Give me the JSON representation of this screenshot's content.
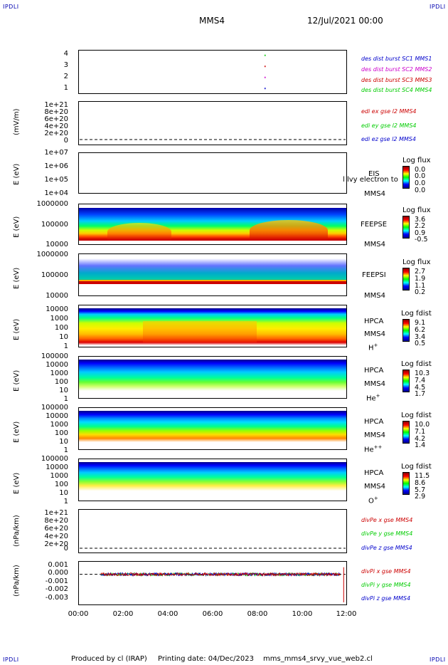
{
  "corners": {
    "tl": "IPDLI",
    "tr": "IPDLI",
    "bl": "IPDLI",
    "br": "IPDLI"
  },
  "header": {
    "mission": "MMS4",
    "date": "12/Jul/2021 00:00"
  },
  "colors": {
    "blue": "#0000cc",
    "magenta": "#cc00cc",
    "red": "#cc0000",
    "green": "#00cc00"
  },
  "chart_data": [
    {
      "type": "scatter",
      "ylim": [
        0.5,
        4.5
      ],
      "ticks": [
        "4",
        "3",
        "2",
        "1"
      ],
      "legend": [
        {
          "label": "des dist burst SC1 MMS1",
          "color": "#0000cc"
        },
        {
          "label": "des dist burst SC2 MMS2",
          "color": "#cc00cc"
        },
        {
          "label": "des dist burst SC3 MMS3",
          "color": "#cc0000"
        },
        {
          "label": "des dist burst SC4 MMS4",
          "color": "#00cc00"
        }
      ],
      "points": [
        {
          "x": "08:20",
          "y": 4
        },
        {
          "x": "08:20",
          "y": 3
        },
        {
          "x": "08:20",
          "y": 2
        },
        {
          "x": "08:20",
          "y": 1
        }
      ]
    },
    {
      "type": "line",
      "ylabel": "(mV/m)",
      "ticks": [
        "1e+21",
        "8e+20",
        "6e+20",
        "4e+20",
        "2e+20",
        "0"
      ],
      "series": [
        {
          "name": "edi ex gse l2 MMS4",
          "color": "#cc0000"
        },
        {
          "name": "edi ey gse l2 MMS4",
          "color": "#00cc00"
        },
        {
          "name": "edi ez gse l2 MMS4",
          "color": "#0000cc"
        }
      ]
    },
    {
      "type": "heatmap",
      "ylabel": "E (eV)",
      "ticks": [
        "1e+07",
        "1e+06",
        "1e+05",
        "1e+04"
      ],
      "labels": [
        "EIS",
        "MMS4"
      ],
      "overlay": "l lvy electron to",
      "cbar": {
        "title": "Log flux",
        "values": [
          "0.0",
          "0.0",
          "0.0",
          "0.0"
        ]
      }
    },
    {
      "type": "heatmap",
      "ylabel": "E (eV)",
      "ticks": [
        "1000000",
        "100000",
        "10000"
      ],
      "labels": [
        "FEEPSE",
        "MMS4"
      ],
      "cbar": {
        "title": "Log flux",
        "values": [
          "3.6",
          "2.2",
          "0.9",
          "-0.5"
        ]
      }
    },
    {
      "type": "heatmap",
      "ylabel": "E (eV)",
      "ticks": [
        "1000000",
        "100000",
        "10000"
      ],
      "labels": [
        "FEEPSI",
        "MMS4"
      ],
      "cbar": {
        "title": "Log flux",
        "values": [
          "2.7",
          "1.9",
          "1.1",
          "0.2"
        ]
      }
    },
    {
      "type": "heatmap",
      "ylabel": "E (eV)",
      "ticks": [
        "10000",
        "1000",
        "100",
        "10",
        "1"
      ],
      "labels": [
        "HPCA",
        "MMS4"
      ],
      "species": "H",
      "charge": "+",
      "cbar": {
        "title": "Log fdist",
        "values": [
          "9.1",
          "6.2",
          "3.4",
          "0.5"
        ]
      }
    },
    {
      "type": "heatmap",
      "ylabel": "E (eV)",
      "ticks": [
        "100000",
        "10000",
        "1000",
        "100",
        "10",
        "1"
      ],
      "labels": [
        "HPCA",
        "MMS4"
      ],
      "species": "He",
      "charge": "+",
      "cbar": {
        "title": "Log fdist",
        "values": [
          "10.3",
          "7.4",
          "4.5",
          "1.7"
        ]
      }
    },
    {
      "type": "heatmap",
      "ylabel": "E (eV)",
      "ticks": [
        "100000",
        "10000",
        "1000",
        "100",
        "10",
        "1"
      ],
      "labels": [
        "HPCA",
        "MMS4"
      ],
      "species": "He",
      "charge": "++",
      "cbar": {
        "title": "Log fdist",
        "values": [
          "10.0",
          "7.1",
          "4.2",
          "1.4"
        ]
      }
    },
    {
      "type": "heatmap",
      "ylabel": "E (eV)",
      "ticks": [
        "100000",
        "10000",
        "1000",
        "100",
        "10",
        "1"
      ],
      "labels": [
        "HPCA",
        "MMS4"
      ],
      "species": "O",
      "charge": "+",
      "cbar": {
        "title": "Log fdist",
        "values": [
          "11.5",
          "8.6",
          "5.7",
          "2.9"
        ]
      }
    },
    {
      "type": "line",
      "ylabel": "(nPa/km)",
      "ticks": [
        "1e+21",
        "8e+20",
        "6e+20",
        "4e+20",
        "2e+20",
        "0"
      ],
      "series": [
        {
          "name": "divPe x gse MMS4",
          "color": "#cc0000"
        },
        {
          "name": "divPe y gse MMS4",
          "color": "#00cc00"
        },
        {
          "name": "divPe z gse MMS4",
          "color": "#0000cc"
        }
      ]
    },
    {
      "type": "line",
      "ylabel": "(nPa/km)",
      "ticks": [
        "0.001",
        "0.000",
        "-0.001",
        "-0.002",
        "-0.003"
      ],
      "ylim": [
        -0.0035,
        0.0015
      ],
      "series": [
        {
          "name": "divPi x gse MMS4",
          "color": "#cc0000"
        },
        {
          "name": "divPi y gse MMS4",
          "color": "#00cc00"
        },
        {
          "name": "divPi z gse MMS4",
          "color": "#0000cc"
        }
      ]
    }
  ],
  "xaxis": {
    "ticks": [
      "00:00",
      "02:00",
      "04:00",
      "06:00",
      "08:00",
      "10:00",
      "12:00"
    ]
  },
  "footer": {
    "produced": "Produced by cl (IRAP)",
    "printing": "Printing date: 04/Dec/2023",
    "file": "mms_mms4_srvy_vue_web2.cl"
  }
}
